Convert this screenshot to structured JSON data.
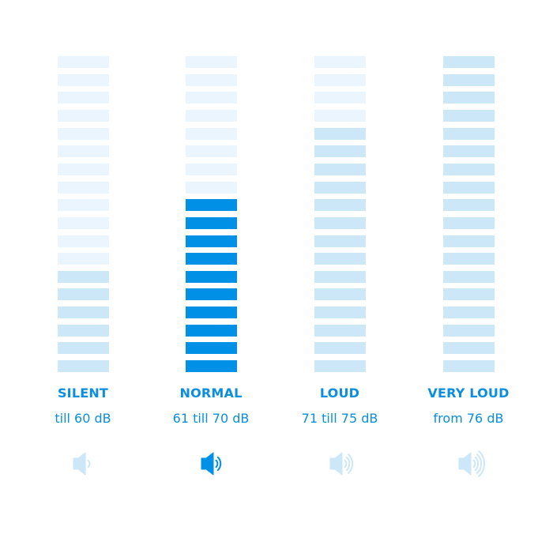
{
  "colors": {
    "inactive": "#eaf5fd",
    "level": "#cce7f8",
    "active": "#0091e6",
    "text": "#0a8ee0",
    "icon_faded": "#cce7f8"
  },
  "bar_count": 18,
  "categories": [
    {
      "title": "SILENT",
      "range": "till 60 dB",
      "inactive_bars": 12,
      "highlighted": false,
      "sound_waves": 1,
      "icon": "speaker-icon"
    },
    {
      "title": "NORMAL",
      "range": "61 till 70 dB",
      "inactive_bars": 8,
      "highlighted": true,
      "sound_waves": 2,
      "icon": "speaker-icon"
    },
    {
      "title": "LOUD",
      "range": "71 till 75 dB",
      "inactive_bars": 4,
      "highlighted": false,
      "sound_waves": 3,
      "icon": "speaker-icon"
    },
    {
      "title": "VERY LOUD",
      "range": "from 76 dB",
      "inactive_bars": 0,
      "highlighted": false,
      "sound_waves": 4,
      "icon": "speaker-icon"
    }
  ]
}
